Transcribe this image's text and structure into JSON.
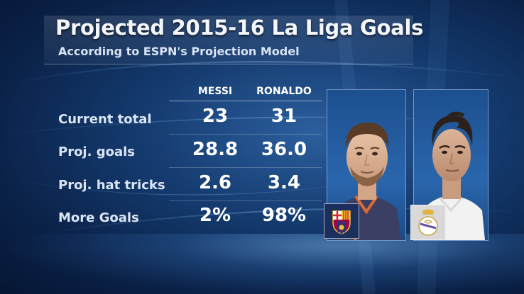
{
  "graphic": {
    "title": "Projected 2015-16 La Liga Goals",
    "subtitle": "According to ESPN's Projection Model"
  },
  "table": {
    "columns": [
      "MESSI",
      "RONALDO"
    ],
    "rows": [
      {
        "label": "Current total",
        "values": [
          "23",
          "31"
        ]
      },
      {
        "label": "Proj. goals",
        "values": [
          "28.8",
          "36.0"
        ]
      },
      {
        "label": "Proj. hat tricks",
        "values": [
          "2.6",
          "3.4"
        ]
      },
      {
        "label": "More Goals",
        "values": [
          "2%",
          "98%"
        ]
      }
    ]
  },
  "players": [
    {
      "photo_icon": "player-photo-messi-icon",
      "crest_icon": "fc-barcelona-crest-icon"
    },
    {
      "photo_icon": "player-photo-ronaldo-icon",
      "crest_icon": "real-madrid-crest-icon"
    }
  ],
  "colors": {
    "background_center": "#2c5f9e",
    "background_edge": "#061634",
    "text": "#ffffff",
    "label_text": "#dbe6f5"
  }
}
